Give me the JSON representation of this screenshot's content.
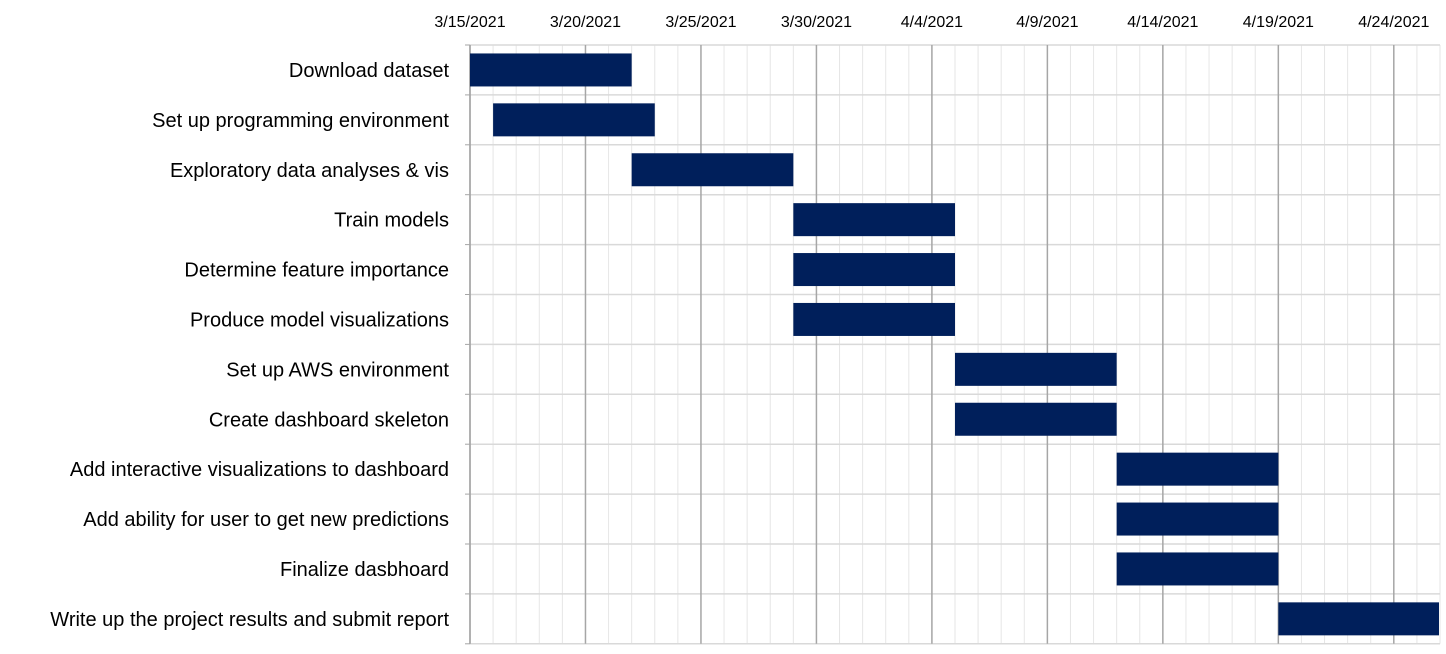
{
  "chart_data": {
    "type": "bar",
    "orientation": "horizontal",
    "subtype": "gantt",
    "x_axis_position": "top",
    "xlim": [
      "3/15/2021",
      "4/26/2021"
    ],
    "x_ticks": [
      "3/15/2021",
      "3/20/2021",
      "3/25/2021",
      "3/30/2021",
      "4/4/2021",
      "4/9/2021",
      "4/14/2021",
      "4/19/2021",
      "4/24/2021"
    ],
    "grid": {
      "major": true,
      "minor": true,
      "minor_interval_days": 1,
      "major_interval_days": 5
    },
    "bar_color": "#001f5b",
    "tasks": [
      {
        "label": "Download dataset",
        "start": "3/15/2021",
        "end": "3/22/2021"
      },
      {
        "label": "Set up programming environment",
        "start": "3/16/2021",
        "end": "3/23/2021"
      },
      {
        "label": "Exploratory data analyses & vis",
        "start": "3/22/2021",
        "end": "3/29/2021"
      },
      {
        "label": "Train models",
        "start": "3/29/2021",
        "end": "4/5/2021"
      },
      {
        "label": "Determine feature importance",
        "start": "3/29/2021",
        "end": "4/5/2021"
      },
      {
        "label": "Produce model visualizations",
        "start": "3/29/2021",
        "end": "4/5/2021"
      },
      {
        "label": "Set up AWS environment",
        "start": "4/5/2021",
        "end": "4/12/2021"
      },
      {
        "label": "Create dashboard skeleton",
        "start": "4/5/2021",
        "end": "4/12/2021"
      },
      {
        "label": "Add interactive visualizations to dashboard",
        "start": "4/12/2021",
        "end": "4/19/2021"
      },
      {
        "label": "Add ability for user to get new predictions",
        "start": "4/12/2021",
        "end": "4/19/2021"
      },
      {
        "label": "Finalize dasbhoard",
        "start": "4/12/2021",
        "end": "4/19/2021"
      },
      {
        "label": "Write up the project results and submit report",
        "start": "4/19/2021",
        "end": "4/26/2021"
      }
    ]
  }
}
